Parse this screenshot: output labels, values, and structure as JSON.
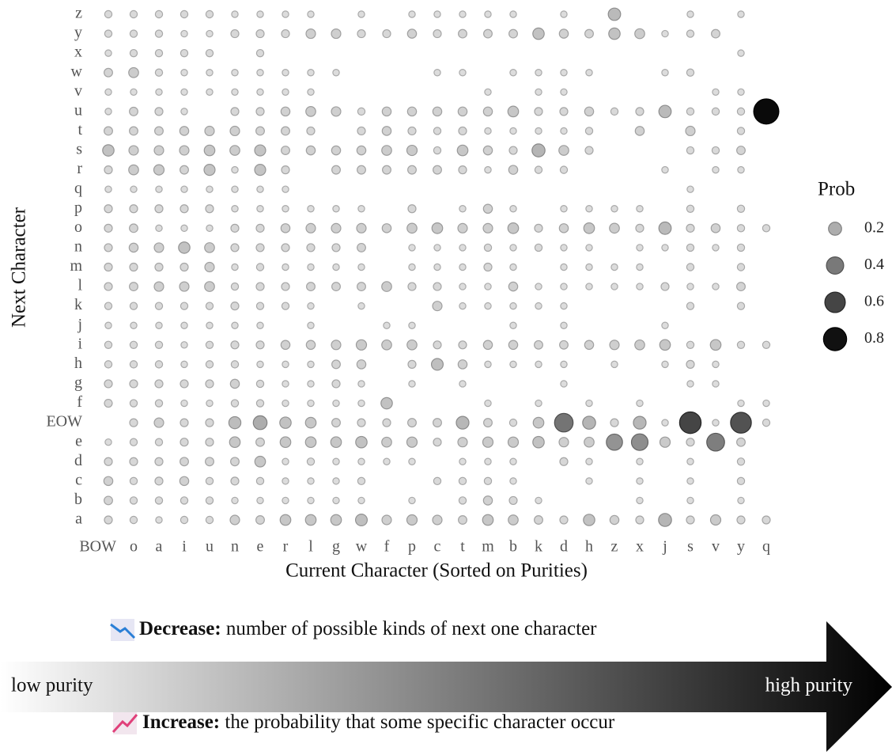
{
  "chart_data": {
    "type": "bubble",
    "x_label": "Current Character (Sorted on Purities)",
    "y_label": "Next Character",
    "categories": [
      "BOW",
      "o",
      "a",
      "i",
      "u",
      "n",
      "e",
      "r",
      "l",
      "g",
      "w",
      "f",
      "p",
      "c",
      "t",
      "m",
      "b",
      "k",
      "d",
      "h",
      "z",
      "x",
      "j",
      "s",
      "v",
      "y",
      "q"
    ],
    "y_categories": [
      "z",
      "y",
      "x",
      "w",
      "v",
      "u",
      "t",
      "s",
      "r",
      "q",
      "p",
      "o",
      "n",
      "m",
      "l",
      "k",
      "j",
      "i",
      "h",
      "g",
      "f",
      "EOW",
      "e",
      "d",
      "c",
      "b",
      "a"
    ],
    "values": [
      [
        0.03,
        0.03,
        0.03,
        0.03,
        0.03,
        0.02,
        0.02,
        0.02,
        0.02,
        null,
        0.02,
        null,
        0.02,
        0.02,
        0.02,
        0.02,
        0.02,
        null,
        0.02,
        null,
        0.15,
        null,
        null,
        0.02,
        null,
        0.02,
        null
      ],
      [
        0.03,
        0.03,
        0.03,
        0.02,
        0.02,
        0.04,
        0.04,
        0.04,
        0.07,
        0.07,
        0.04,
        0.04,
        0.06,
        0.04,
        0.05,
        0.05,
        0.05,
        0.12,
        0.06,
        0.05,
        0.12,
        0.08,
        0.02,
        0.03,
        0.05,
        null,
        null
      ],
      [
        0.02,
        0.03,
        0.03,
        0.03,
        0.03,
        null,
        0.03,
        null,
        null,
        null,
        null,
        null,
        null,
        null,
        null,
        null,
        null,
        null,
        null,
        null,
        null,
        null,
        null,
        null,
        null,
        0.02,
        null
      ],
      [
        0.05,
        0.08,
        0.03,
        0.02,
        0.02,
        0.02,
        0.02,
        0.02,
        0.02,
        0.02,
        null,
        null,
        null,
        0.02,
        0.02,
        null,
        0.02,
        0.02,
        0.02,
        0.02,
        null,
        null,
        0.02,
        0.03,
        null,
        null,
        null
      ],
      [
        0.02,
        0.02,
        0.02,
        0.02,
        0.02,
        0.02,
        0.02,
        0.02,
        0.02,
        null,
        null,
        null,
        null,
        null,
        null,
        0.02,
        null,
        0.02,
        0.02,
        null,
        null,
        null,
        null,
        null,
        0.02,
        0.02,
        null
      ],
      [
        0.02,
        0.05,
        0.04,
        0.02,
        null,
        0.04,
        0.04,
        0.06,
        0.08,
        0.07,
        0.03,
        0.06,
        0.06,
        0.06,
        0.06,
        0.06,
        0.1,
        0.04,
        0.04,
        0.06,
        0.03,
        0.04,
        0.15,
        0.03,
        0.03,
        0.03,
        0.86
      ],
      [
        0.05,
        0.05,
        0.05,
        0.06,
        0.07,
        0.07,
        0.05,
        0.05,
        0.04,
        null,
        0.04,
        0.06,
        0.04,
        0.03,
        0.04,
        0.02,
        0.02,
        0.02,
        0.02,
        0.03,
        null,
        0.06,
        null,
        0.07,
        null,
        0.03,
        null
      ],
      [
        0.12,
        0.07,
        0.07,
        0.07,
        0.1,
        0.08,
        0.11,
        0.05,
        0.06,
        0.06,
        0.06,
        0.08,
        0.09,
        0.03,
        0.1,
        0.06,
        0.04,
        0.17,
        0.08,
        0.04,
        null,
        null,
        null,
        0.03,
        0.03,
        0.05,
        null
      ],
      [
        0.04,
        0.08,
        0.09,
        0.05,
        0.11,
        0.02,
        0.11,
        0.04,
        null,
        0.05,
        0.05,
        0.05,
        0.05,
        0.05,
        0.04,
        0.02,
        0.06,
        0.03,
        0.03,
        null,
        null,
        null,
        0.02,
        null,
        0.02,
        0.02,
        null
      ],
      [
        0.02,
        0.02,
        0.02,
        0.02,
        0.02,
        0.02,
        0.02,
        0.02,
        null,
        null,
        null,
        null,
        null,
        null,
        null,
        null,
        null,
        null,
        null,
        null,
        null,
        null,
        null,
        0.02,
        null,
        null,
        null
      ],
      [
        0.04,
        0.04,
        0.04,
        0.04,
        0.04,
        0.02,
        0.02,
        0.02,
        0.02,
        0.02,
        0.02,
        null,
        0.04,
        null,
        0.02,
        0.06,
        0.02,
        null,
        0.02,
        0.02,
        0.02,
        0.02,
        null,
        0.03,
        null,
        0.03,
        null
      ],
      [
        0.04,
        0.05,
        0.02,
        0.02,
        0.02,
        0.04,
        0.04,
        0.06,
        0.07,
        0.07,
        0.07,
        0.06,
        0.08,
        0.1,
        0.07,
        0.07,
        0.1,
        0.04,
        0.06,
        0.1,
        0.08,
        0.04,
        0.15,
        0.04,
        0.06,
        0.03,
        0.03
      ],
      [
        0.04,
        0.06,
        0.07,
        0.12,
        0.08,
        0.04,
        0.04,
        0.04,
        0.04,
        0.04,
        0.05,
        null,
        0.02,
        0.02,
        0.02,
        0.03,
        0.02,
        0.03,
        0.02,
        0.02,
        null,
        0.02,
        0.02,
        0.03,
        0.02,
        0.03,
        null
      ],
      [
        0.04,
        0.04,
        0.04,
        0.04,
        0.07,
        0.02,
        0.03,
        0.02,
        0.02,
        0.02,
        0.02,
        null,
        0.02,
        0.02,
        0.02,
        0.04,
        0.02,
        null,
        0.02,
        0.02,
        0.02,
        0.02,
        null,
        0.03,
        null,
        0.03,
        null
      ],
      [
        0.04,
        0.05,
        0.07,
        0.07,
        0.08,
        0.03,
        0.04,
        0.04,
        0.05,
        0.05,
        0.05,
        0.08,
        0.04,
        0.04,
        0.02,
        0.02,
        0.06,
        0.02,
        0.02,
        0.02,
        0.02,
        0.02,
        0.04,
        0.02,
        0.02,
        0.05,
        null
      ],
      [
        0.03,
        0.03,
        0.03,
        0.03,
        0.03,
        0.04,
        0.03,
        0.03,
        0.02,
        null,
        0.02,
        null,
        null,
        0.07,
        0.02,
        0.02,
        0.02,
        0.02,
        0.02,
        null,
        null,
        null,
        null,
        0.03,
        null,
        0.03,
        null
      ],
      [
        0.02,
        0.02,
        0.02,
        0.02,
        0.02,
        0.02,
        0.02,
        null,
        0.02,
        null,
        null,
        0.02,
        0.02,
        null,
        null,
        null,
        0.02,
        null,
        0.02,
        null,
        null,
        null,
        0.02,
        null,
        null,
        null,
        null
      ],
      [
        0.03,
        0.03,
        0.03,
        0.02,
        0.03,
        0.04,
        0.04,
        0.06,
        0.06,
        0.07,
        0.09,
        0.08,
        0.08,
        0.04,
        0.04,
        0.06,
        0.06,
        0.05,
        0.05,
        0.06,
        0.07,
        0.08,
        0.1,
        0.03,
        0.1,
        0.03,
        0.03
      ],
      [
        0.03,
        0.03,
        0.03,
        0.02,
        0.03,
        0.03,
        0.02,
        0.02,
        0.02,
        0.05,
        0.06,
        null,
        0.04,
        0.13,
        0.06,
        0.02,
        0.02,
        0.02,
        0.02,
        null,
        0.02,
        null,
        0.02,
        0.04,
        0.02,
        null,
        null
      ],
      [
        0.04,
        0.04,
        0.04,
        0.04,
        0.04,
        0.06,
        0.03,
        0.02,
        0.02,
        0.04,
        0.02,
        null,
        0.02,
        null,
        0.02,
        null,
        null,
        null,
        0.02,
        null,
        null,
        null,
        null,
        0.02,
        0.02,
        null,
        null
      ],
      [
        0.04,
        0.03,
        0.03,
        0.02,
        0.02,
        0.03,
        0.03,
        0.02,
        0.02,
        0.02,
        0.02,
        0.12,
        null,
        null,
        null,
        0.02,
        null,
        0.02,
        null,
        0.02,
        null,
        0.02,
        null,
        null,
        null,
        0.02,
        0.02
      ],
      [
        null,
        0.04,
        0.07,
        0.04,
        0.04,
        0.14,
        0.2,
        0.12,
        0.1,
        0.05,
        0.04,
        0.04,
        0.05,
        0.05,
        0.16,
        0.05,
        0.03,
        0.1,
        0.42,
        0.17,
        0.04,
        0.16,
        0.02,
        0.6,
        0.02,
        0.55,
        0.03
      ],
      [
        0.02,
        0.03,
        0.03,
        0.04,
        0.04,
        0.1,
        0.05,
        0.1,
        0.1,
        0.1,
        0.12,
        0.08,
        0.09,
        0.04,
        0.07,
        0.09,
        0.09,
        0.12,
        0.07,
        0.08,
        0.3,
        0.32,
        0.09,
        0.04,
        0.38,
        0.05,
        null
      ],
      [
        0.04,
        0.04,
        0.04,
        0.05,
        0.05,
        0.05,
        0.1,
        0.02,
        0.03,
        0.02,
        0.02,
        0.02,
        0.02,
        null,
        0.02,
        0.02,
        0.02,
        null,
        0.04,
        0.02,
        null,
        0.02,
        null,
        0.02,
        null,
        0.03,
        null
      ],
      [
        0.06,
        0.03,
        0.04,
        0.06,
        0.03,
        0.04,
        0.03,
        0.02,
        0.02,
        0.02,
        0.03,
        null,
        null,
        0.03,
        0.03,
        0.03,
        0.02,
        null,
        null,
        0.02,
        null,
        0.02,
        null,
        0.02,
        null,
        0.03,
        null
      ],
      [
        0.05,
        0.03,
        0.03,
        0.03,
        0.03,
        0.02,
        0.02,
        0.02,
        0.02,
        0.02,
        0.02,
        null,
        0.02,
        null,
        0.03,
        0.06,
        0.04,
        0.02,
        null,
        null,
        null,
        0.02,
        null,
        0.02,
        null,
        0.02,
        null
      ],
      [
        0.04,
        0.03,
        0.02,
        0.03,
        0.03,
        0.07,
        0.05,
        0.1,
        0.1,
        0.1,
        0.13,
        0.07,
        0.09,
        0.07,
        0.05,
        0.1,
        0.08,
        0.05,
        0.04,
        0.12,
        0.06,
        0.04,
        0.17,
        0.04,
        0.09,
        0.04,
        0.04
      ]
    ],
    "size_legend": {
      "title": "Prob",
      "values": [
        0.2,
        0.4,
        0.6,
        0.8
      ]
    },
    "purity_arrow": {
      "left_label": "low purity",
      "right_label": "high purity"
    },
    "notes": [
      {
        "bold": "Decrease:",
        "text": "number of possible kinds of next one character"
      },
      {
        "bold": "Increase:",
        "text": "the probability that some specific character occur"
      }
    ]
  }
}
